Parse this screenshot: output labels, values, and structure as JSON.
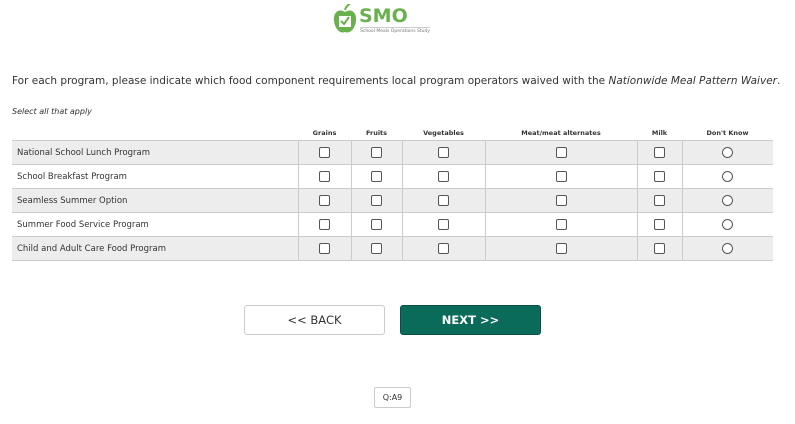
{
  "logo": {
    "title": "SMO",
    "subtitle": "School Meals Operations Study",
    "color": "#6ab04c"
  },
  "question": {
    "text": "For each program, please indicate which food component requirements local program operators waived with the ",
    "emphasis": "Nationwide Meal Pattern Waiver",
    "end": "."
  },
  "instruction": "Select all that apply",
  "table": {
    "columns": [
      "Grains",
      "Fruits",
      "Vegetables",
      "Meat/meat alternates",
      "Milk",
      "Don't Know"
    ],
    "rows": [
      {
        "label": "National School Lunch Program"
      },
      {
        "label": "School Breakfast Program"
      },
      {
        "label": "Seamless Summer Option"
      },
      {
        "label": "Summer Food Service Program"
      },
      {
        "label": "Child and Adult Care Food Program"
      }
    ]
  },
  "nav": {
    "back": "<< BACK",
    "next": "NEXT >>",
    "next_color": "#0b6b5a"
  },
  "question_id": "Q:A9"
}
